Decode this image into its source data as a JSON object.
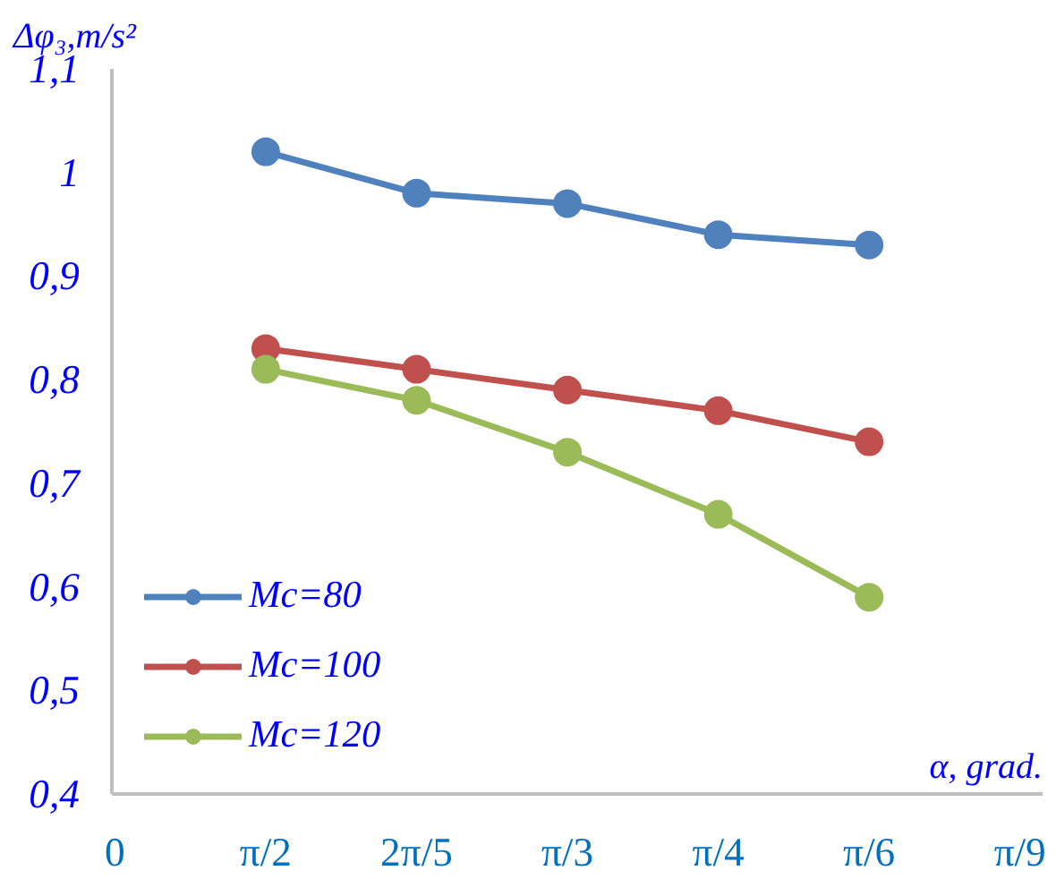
{
  "chart_data": {
    "type": "line",
    "ylabel": "Δφ₃,m/s²",
    "xlabel": "α, grad.",
    "categories": [
      "0",
      "π/2",
      "2π/5",
      "π/3",
      "π/4",
      "π/6",
      "π/9"
    ],
    "series": [
      {
        "name": "Mc=80",
        "color": "#4f81bd",
        "values": [
          null,
          1.02,
          0.98,
          0.97,
          0.94,
          0.93,
          null
        ]
      },
      {
        "name": "Mc=100",
        "color": "#c0504d",
        "values": [
          null,
          0.83,
          0.81,
          0.79,
          0.77,
          0.74,
          null
        ]
      },
      {
        "name": "Mc=120",
        "color": "#9bbb59",
        "values": [
          null,
          0.81,
          0.78,
          0.73,
          0.67,
          0.59,
          null
        ]
      }
    ],
    "ylim": [
      0.4,
      1.1
    ],
    "yticks": [
      {
        "value": 0.4,
        "label": "0,4"
      },
      {
        "value": 0.5,
        "label": "0,5"
      },
      {
        "value": 0.6,
        "label": "0,6"
      },
      {
        "value": 0.7,
        "label": "0,7"
      },
      {
        "value": 0.8,
        "label": "0,8"
      },
      {
        "value": 0.9,
        "label": "0,9"
      },
      {
        "value": 1,
        "label": "1"
      },
      {
        "value": 1.1,
        "label": "1,1"
      }
    ],
    "grid": false,
    "legend": "bottom left",
    "marker": "circle",
    "line_style": "solid"
  }
}
